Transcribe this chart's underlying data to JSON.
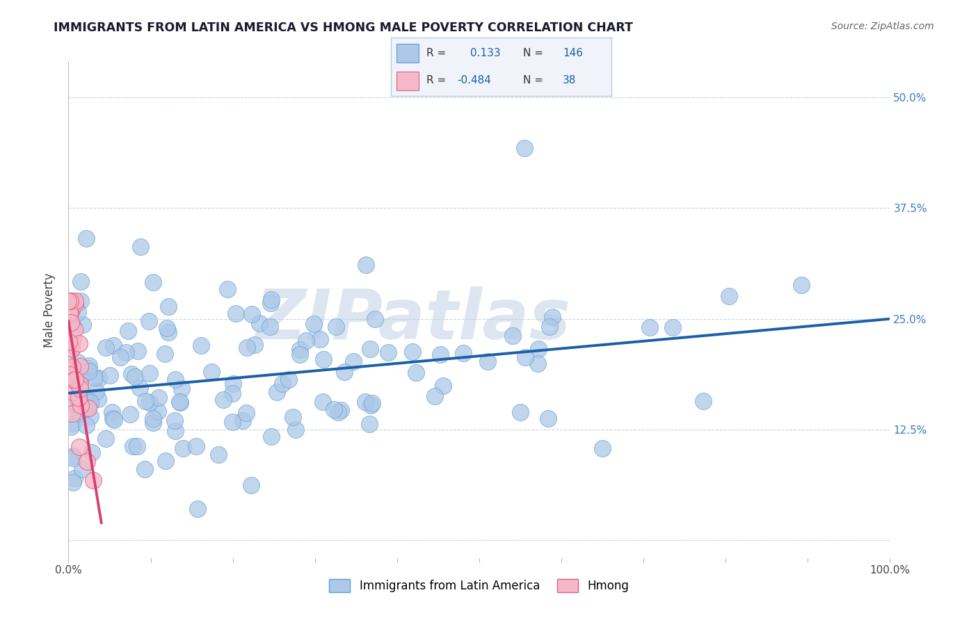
{
  "title": "IMMIGRANTS FROM LATIN AMERICA VS HMONG MALE POVERTY CORRELATION CHART",
  "source_text": "Source: ZipAtlas.com",
  "ylabel": "Male Poverty",
  "xlim": [
    0.0,
    1.0
  ],
  "ylim": [
    -0.02,
    0.54
  ],
  "yticks": [
    0.0,
    0.125,
    0.25,
    0.375,
    0.5
  ],
  "ytick_labels": [
    "",
    "12.5%",
    "25.0%",
    "37.5%",
    "50.0%"
  ],
  "xtick_positions": [
    0.0,
    0.1,
    0.2,
    0.3,
    0.4,
    0.5,
    0.6,
    0.7,
    0.8,
    0.9,
    1.0
  ],
  "xtick_labels_shown": {
    "0.0": "0.0%",
    "1.0": "100.0%"
  },
  "series1_color": "#adc8e8",
  "series1_edge": "#5a9fd4",
  "series1_label": "Immigrants from Latin America",
  "series1_R": 0.133,
  "series1_N": 146,
  "series2_color": "#f5b8c8",
  "series2_edge": "#e06080",
  "series2_label": "Hmong",
  "series2_R": -0.484,
  "series2_N": 38,
  "trend1_color": "#1a5fa8",
  "trend2_color": "#d94070",
  "legend_face": "#f0f4fa",
  "legend_edge": "#b8cce0",
  "legend_text_color": "#1a5fa8",
  "watermark": "ZIPatlas",
  "watermark_color": "#dde6f0",
  "background_color": "#ffffff",
  "grid_color": "#b8cce0",
  "title_color": "#1a1a2e",
  "title_fontsize": 12.5,
  "seed": 99
}
